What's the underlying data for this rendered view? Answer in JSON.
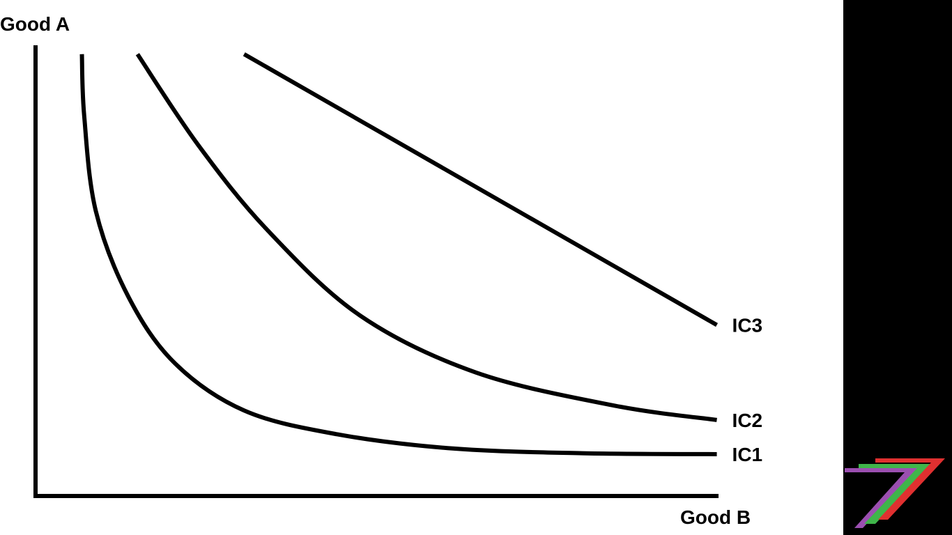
{
  "chart_data": {
    "type": "line",
    "title": "",
    "xlabel": "Good B",
    "ylabel": "Good A",
    "grid": false,
    "axis_ticks": false,
    "series": [
      {
        "name": "IC1",
        "x": [
          1.0,
          1.05,
          1.3,
          2.0,
          3.0,
          4.5,
          6.5,
          9.0,
          11.8,
          14.7
        ],
        "y": [
          9.3,
          8.0,
          6.0,
          4.2,
          2.8,
          1.8,
          1.3,
          1.0,
          0.9,
          0.88
        ]
      },
      {
        "name": "IC2",
        "x": [
          2.2,
          3.5,
          5.0,
          7.0,
          9.5,
          12.5,
          14.7
        ],
        "y": [
          9.3,
          7.4,
          5.6,
          3.8,
          2.6,
          1.9,
          1.6
        ]
      },
      {
        "name": "IC3",
        "x": [
          4.5,
          14.7
        ],
        "y": [
          9.3,
          3.6
        ]
      }
    ]
  },
  "colors": {
    "curve": "#000000",
    "axis": "#000000",
    "background": "#ffffff",
    "side_panel": "#000000",
    "logo_purple": "#9b4fb0",
    "logo_green": "#3fb54a",
    "logo_red": "#e03030"
  },
  "logo": {
    "name": "seven-logo-icon"
  }
}
